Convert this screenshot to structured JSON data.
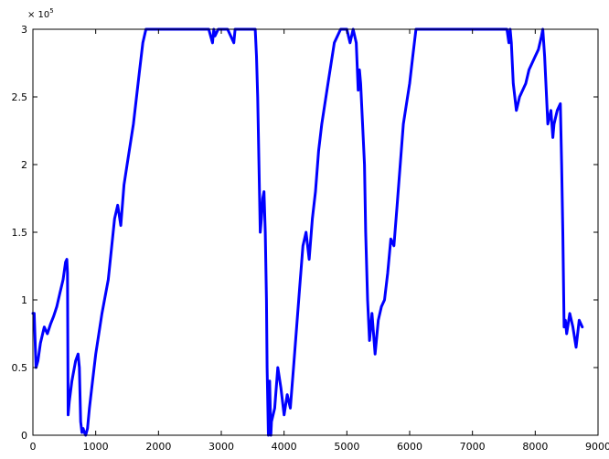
{
  "chart_data": {
    "type": "line",
    "title": "",
    "xlabel": "",
    "ylabel": "",
    "xlim": [
      0,
      9000
    ],
    "ylim": [
      0,
      300000
    ],
    "x_ticks": [
      0,
      1000,
      2000,
      3000,
      4000,
      5000,
      6000,
      7000,
      8000,
      9000
    ],
    "y_ticks": [
      0,
      0.5,
      1,
      1.5,
      2,
      2.5,
      3
    ],
    "y_tick_labels": [
      "0",
      "0.5",
      "1",
      "1.5",
      "2",
      "2.5",
      "3"
    ],
    "y_exponent_base": "× 10",
    "y_exponent": "5",
    "grid": false,
    "line_color": "#0000ff",
    "series": [
      {
        "x": [
          0,
          20,
          50,
          80,
          120,
          180,
          230,
          280,
          330,
          380,
          430,
          480,
          520,
          540,
          550,
          560,
          580,
          620,
          680,
          720,
          740,
          760,
          780,
          800,
          820,
          840,
          870,
          900,
          950,
          1000,
          1100,
          1200,
          1300,
          1350,
          1400,
          1450,
          1500,
          1600,
          1700,
          1750,
          1800,
          1900,
          2000,
          2200,
          2400,
          2600,
          2800,
          2860,
          2880,
          2900,
          2950,
          3000,
          3100,
          3200,
          3220,
          3250,
          3300,
          3400,
          3500,
          3540,
          3560,
          3580,
          3600,
          3620,
          3640,
          3660,
          3680,
          3700,
          3720,
          3730,
          3750,
          3760,
          3770,
          3790,
          3800,
          3850,
          3900,
          3950,
          4000,
          4050,
          4100,
          4150,
          4200,
          4250,
          4300,
          4350,
          4400,
          4450,
          4500,
          4550,
          4600,
          4700,
          4800,
          4900,
          5000,
          5050,
          5100,
          5150,
          5180,
          5200,
          5220,
          5250,
          5280,
          5300,
          5330,
          5360,
          5400,
          5450,
          5500,
          5550,
          5600,
          5650,
          5700,
          5750,
          5800,
          5850,
          5900,
          6000,
          6050,
          6100,
          6200,
          6300,
          6400,
          6500,
          6600,
          6700,
          6800,
          6900,
          7000,
          7100,
          7200,
          7300,
          7400,
          7500,
          7520,
          7550,
          7580,
          7600,
          7620,
          7650,
          7700,
          7750,
          7800,
          7850,
          7900,
          7950,
          8000,
          8050,
          8100,
          8120,
          8150,
          8200,
          8250,
          8280,
          8300,
          8350,
          8400,
          8420,
          8440,
          8460,
          8480,
          8500,
          8550,
          8600,
          8650,
          8700,
          8750
        ],
        "y": [
          90000,
          90000,
          50000,
          55000,
          68000,
          80000,
          75000,
          82000,
          88000,
          95000,
          105000,
          115000,
          128000,
          130000,
          120000,
          15000,
          25000,
          40000,
          55000,
          60000,
          50000,
          10000,
          2000,
          5000,
          2000,
          0,
          5000,
          20000,
          40000,
          60000,
          90000,
          115000,
          160000,
          170000,
          155000,
          185000,
          200000,
          230000,
          270000,
          290000,
          300000,
          300000,
          300000,
          300000,
          300000,
          300000,
          300000,
          290000,
          300000,
          295000,
          300000,
          300000,
          300000,
          290000,
          300000,
          300000,
          300000,
          300000,
          300000,
          300000,
          280000,
          250000,
          200000,
          150000,
          160000,
          175000,
          180000,
          150000,
          100000,
          50000,
          0,
          20000,
          40000,
          0,
          10000,
          20000,
          50000,
          35000,
          15000,
          30000,
          20000,
          50000,
          80000,
          110000,
          140000,
          150000,
          130000,
          160000,
          180000,
          210000,
          230000,
          260000,
          290000,
          300000,
          300000,
          290000,
          300000,
          290000,
          255000,
          270000,
          260000,
          230000,
          200000,
          150000,
          100000,
          70000,
          90000,
          60000,
          85000,
          95000,
          100000,
          120000,
          145000,
          140000,
          170000,
          200000,
          230000,
          260000,
          280000,
          300000,
          300000,
          300000,
          300000,
          300000,
          300000,
          300000,
          300000,
          300000,
          300000,
          300000,
          300000,
          300000,
          300000,
          300000,
          300000,
          300000,
          290000,
          300000,
          290000,
          260000,
          240000,
          250000,
          255000,
          260000,
          270000,
          275000,
          280000,
          285000,
          295000,
          300000,
          280000,
          230000,
          240000,
          220000,
          230000,
          240000,
          245000,
          200000,
          150000,
          80000,
          85000,
          75000,
          90000,
          80000,
          65000,
          85000,
          80000
        ]
      }
    ]
  }
}
